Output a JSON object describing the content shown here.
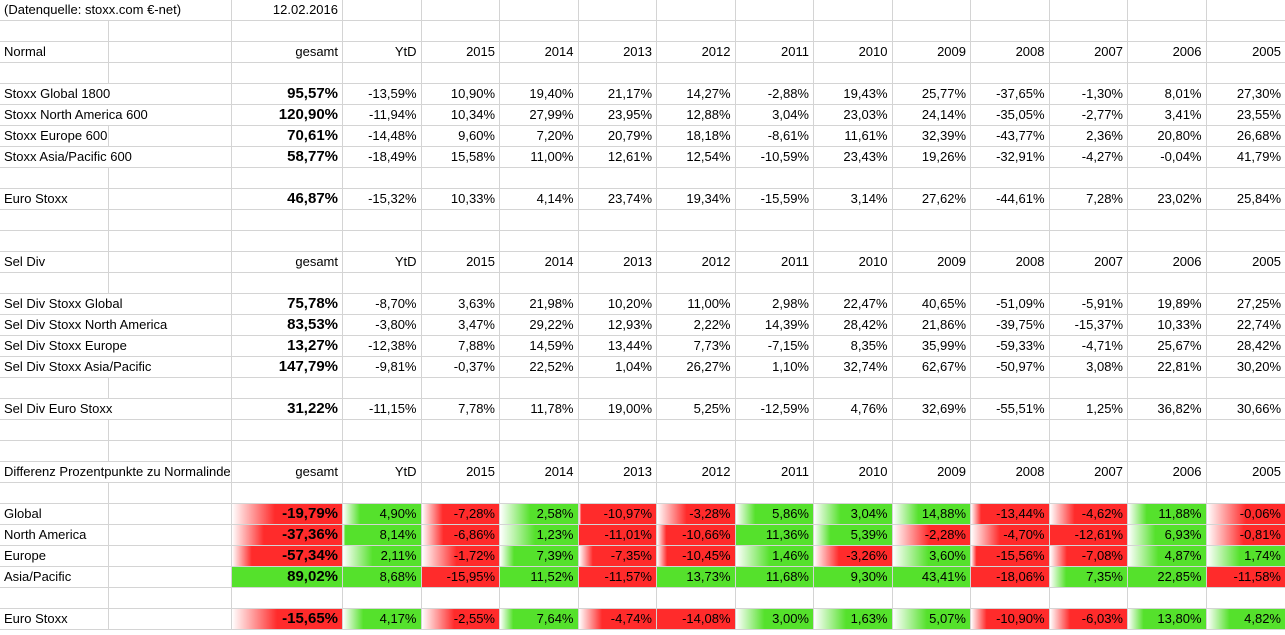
{
  "meta": {
    "source_label": "(Datenquelle: stoxx.com €-net)",
    "date": "12.02.2016"
  },
  "columns": [
    "gesamt",
    "YtD",
    "2015",
    "2014",
    "2013",
    "2012",
    "2011",
    "2010",
    "2009",
    "2008",
    "2007",
    "2006",
    "2005"
  ],
  "colors": {
    "positive": "#55e12c",
    "negative": "#ff2b2b",
    "gridline": "#d4d4d4"
  },
  "sections": [
    {
      "title": "Normal",
      "kind": "plain",
      "rows": [
        {
          "label": "Stoxx Global 1800",
          "values": [
            "95,57%",
            "-13,59%",
            "10,90%",
            "19,40%",
            "21,17%",
            "14,27%",
            "-2,88%",
            "19,43%",
            "25,77%",
            "-37,65%",
            "-1,30%",
            "8,01%",
            "27,30%"
          ]
        },
        {
          "label": "Stoxx North America 600",
          "values": [
            "120,90%",
            "-11,94%",
            "10,34%",
            "27,99%",
            "23,95%",
            "12,88%",
            "3,04%",
            "23,03%",
            "24,14%",
            "-35,05%",
            "-2,77%",
            "3,41%",
            "23,55%"
          ]
        },
        {
          "label": "Stoxx Europe 600",
          "values": [
            "70,61%",
            "-14,48%",
            "9,60%",
            "7,20%",
            "20,79%",
            "18,18%",
            "-8,61%",
            "11,61%",
            "32,39%",
            "-43,77%",
            "2,36%",
            "20,80%",
            "26,68%"
          ]
        },
        {
          "label": "Stoxx Asia/Pacific 600",
          "values": [
            "58,77%",
            "-18,49%",
            "15,58%",
            "11,00%",
            "12,61%",
            "12,54%",
            "-10,59%",
            "23,43%",
            "19,26%",
            "-32,91%",
            "-4,27%",
            "-0,04%",
            "41,79%"
          ]
        }
      ],
      "euro_row": {
        "label": "Euro Stoxx",
        "values": [
          "46,87%",
          "-15,32%",
          "10,33%",
          "4,14%",
          "23,74%",
          "19,34%",
          "-15,59%",
          "3,14%",
          "27,62%",
          "-44,61%",
          "7,28%",
          "23,02%",
          "25,84%"
        ]
      }
    },
    {
      "title": "Sel Div",
      "kind": "plain",
      "rows": [
        {
          "label": "Sel Div Stoxx Global",
          "values": [
            "75,78%",
            "-8,70%",
            "3,63%",
            "21,98%",
            "10,20%",
            "11,00%",
            "2,98%",
            "22,47%",
            "40,65%",
            "-51,09%",
            "-5,91%",
            "19,89%",
            "27,25%"
          ]
        },
        {
          "label": "Sel Div Stoxx North America",
          "values": [
            "83,53%",
            "-3,80%",
            "3,47%",
            "29,22%",
            "12,93%",
            "2,22%",
            "14,39%",
            "28,42%",
            "21,86%",
            "-39,75%",
            "-15,37%",
            "10,33%",
            "22,74%"
          ]
        },
        {
          "label": "Sel Div Stoxx Europe",
          "values": [
            "13,27%",
            "-12,38%",
            "7,88%",
            "14,59%",
            "13,44%",
            "7,73%",
            "-7,15%",
            "8,35%",
            "35,99%",
            "-59,33%",
            "-4,71%",
            "25,67%",
            "28,42%"
          ]
        },
        {
          "label": "Sel Div Stoxx Asia/Pacific",
          "values": [
            "147,79%",
            "-9,81%",
            "-0,37%",
            "22,52%",
            "1,04%",
            "26,27%",
            "1,10%",
            "32,74%",
            "62,67%",
            "-50,97%",
            "3,08%",
            "22,81%",
            "30,20%"
          ]
        }
      ],
      "euro_row": {
        "label": "Sel Div Euro Stoxx",
        "values": [
          "31,22%",
          "-11,15%",
          "7,78%",
          "11,78%",
          "19,00%",
          "5,25%",
          "-12,59%",
          "4,76%",
          "32,69%",
          "-55,51%",
          "1,25%",
          "36,82%",
          "30,66%"
        ]
      }
    },
    {
      "title": "Differenz Prozentpunkte zu Normalindex",
      "kind": "diff",
      "rows": [
        {
          "label": "Global",
          "values": [
            "-19,79%",
            "4,90%",
            "-7,28%",
            "2,58%",
            "-10,97%",
            "-3,28%",
            "5,86%",
            "3,04%",
            "14,88%",
            "-13,44%",
            "-4,62%",
            "11,88%",
            "-0,06%"
          ]
        },
        {
          "label": "North America",
          "values": [
            "-37,36%",
            "8,14%",
            "-6,86%",
            "1,23%",
            "-11,01%",
            "-10,66%",
            "11,36%",
            "5,39%",
            "-2,28%",
            "-4,70%",
            "-12,61%",
            "6,93%",
            "-0,81%"
          ]
        },
        {
          "label": "Europe",
          "values": [
            "-57,34%",
            "2,11%",
            "-1,72%",
            "7,39%",
            "-7,35%",
            "-10,45%",
            "1,46%",
            "-3,26%",
            "3,60%",
            "-15,56%",
            "-7,08%",
            "4,87%",
            "1,74%"
          ]
        },
        {
          "label": "Asia/Pacific",
          "values": [
            "89,02%",
            "8,68%",
            "-15,95%",
            "11,52%",
            "-11,57%",
            "13,73%",
            "11,68%",
            "9,30%",
            "43,41%",
            "-18,06%",
            "7,35%",
            "22,85%",
            "-11,58%"
          ]
        }
      ],
      "euro_row": {
        "label": "Euro Stoxx",
        "values": [
          "-15,65%",
          "4,17%",
          "-2,55%",
          "7,64%",
          "-4,74%",
          "-14,08%",
          "3,00%",
          "1,63%",
          "5,07%",
          "-10,90%",
          "-6,03%",
          "13,80%",
          "4,82%"
        ]
      }
    }
  ]
}
